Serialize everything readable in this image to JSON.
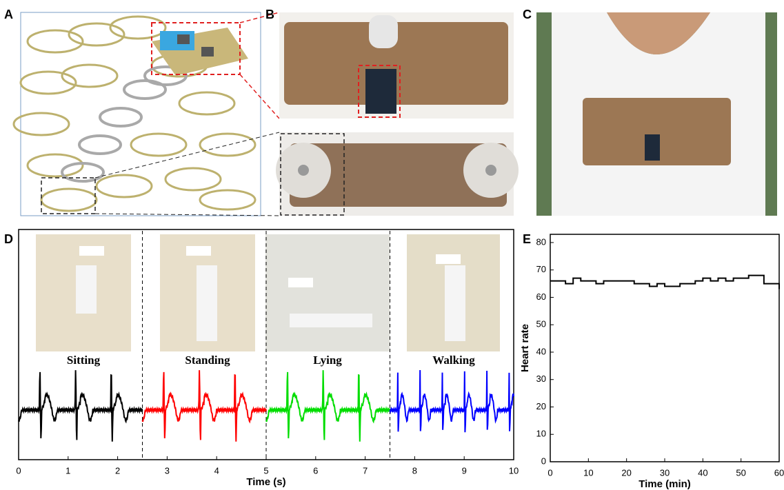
{
  "panels": {
    "a": "A",
    "b": "B",
    "c": "C",
    "d": "D",
    "e": "E"
  },
  "ecg": {
    "series": [
      {
        "name": "Sitting",
        "color": "#000000"
      },
      {
        "name": "Standing",
        "color": "#ff0000"
      },
      {
        "name": "Lying",
        "color": "#00dd00"
      },
      {
        "name": "Walking",
        "color": "#0000ff"
      }
    ],
    "xlabel": "Time (s)",
    "xlim": [
      0,
      10
    ],
    "xticks": [
      0,
      1,
      2,
      3,
      4,
      5,
      6,
      7,
      8,
      9,
      10
    ]
  },
  "chart_data": {
    "type": "line",
    "xlabel": "Time (min)",
    "ylabel": "Heart rate",
    "color": "#000000",
    "x": [
      0,
      2,
      4,
      6,
      8,
      10,
      12,
      14,
      16,
      18,
      20,
      22,
      24,
      26,
      28,
      30,
      32,
      34,
      36,
      38,
      40,
      42,
      44,
      46,
      48,
      50,
      52,
      54,
      56,
      58,
      60
    ],
    "values": [
      66,
      66,
      65,
      67,
      66,
      66,
      65,
      66,
      66,
      66,
      66,
      65,
      65,
      64,
      65,
      64,
      64,
      65,
      65,
      66,
      67,
      66,
      67,
      66,
      67,
      67,
      68,
      68,
      65,
      65,
      63
    ],
    "xlim": [
      0,
      60
    ],
    "ylim": [
      0,
      83
    ],
    "xticks": [
      0,
      10,
      20,
      30,
      40,
      50,
      60
    ],
    "yticks": [
      0,
      10,
      20,
      30,
      40,
      50,
      60,
      70,
      80
    ]
  }
}
